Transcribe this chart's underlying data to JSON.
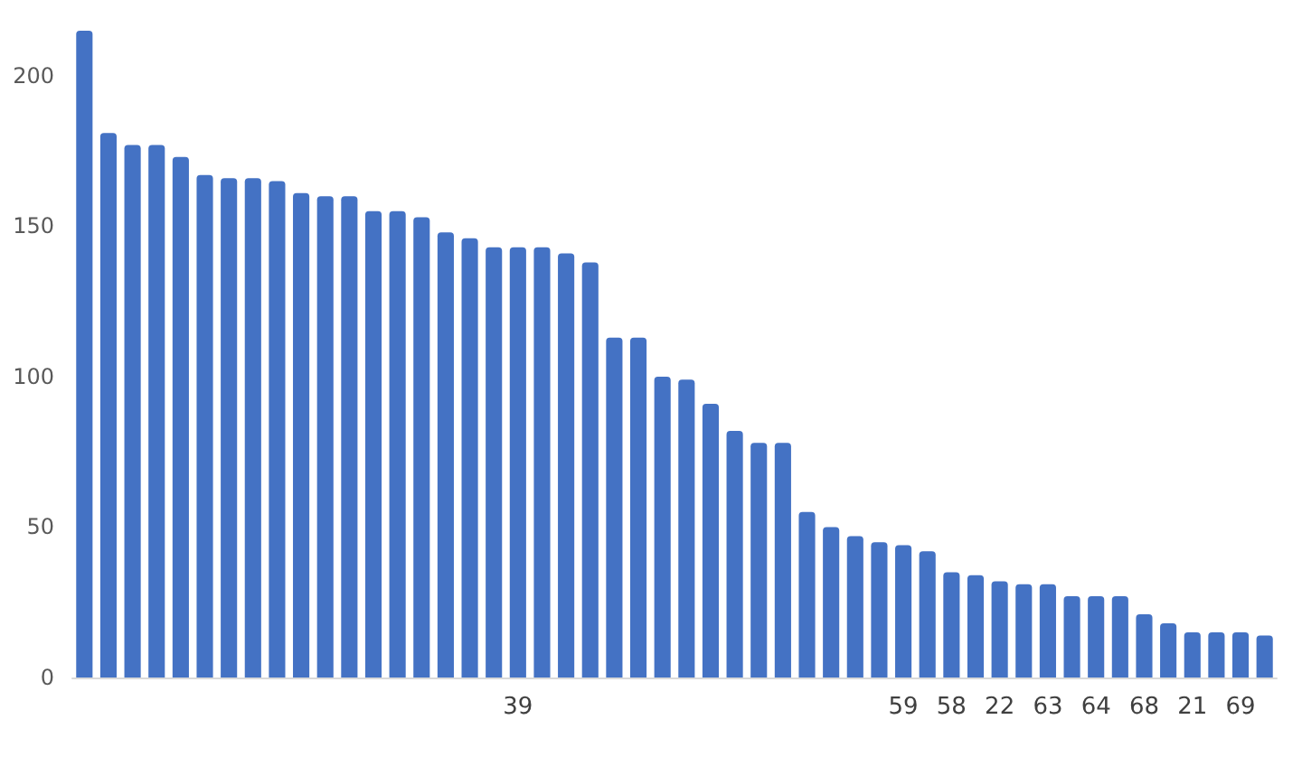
{
  "chart_data": {
    "type": "bar",
    "categories": [
      null,
      null,
      null,
      null,
      null,
      null,
      null,
      null,
      null,
      null,
      null,
      null,
      null,
      null,
      null,
      null,
      null,
      null,
      "39",
      null,
      null,
      null,
      null,
      null,
      null,
      null,
      null,
      null,
      null,
      null,
      null,
      null,
      null,
      null,
      "59",
      null,
      "58",
      null,
      "22",
      null,
      "63",
      null,
      "64",
      null,
      "68",
      null,
      "21",
      null,
      "69",
      null
    ],
    "values": [
      215,
      181,
      177,
      177,
      173,
      167,
      166,
      166,
      165,
      161,
      160,
      160,
      155,
      155,
      153,
      148,
      146,
      143,
      143,
      143,
      141,
      138,
      113,
      113,
      100,
      99,
      91,
      82,
      78,
      78,
      55,
      50,
      47,
      45,
      44,
      42,
      35,
      34,
      32,
      31,
      31,
      27,
      27,
      27,
      21,
      18,
      15,
      15,
      15,
      14
    ],
    "color": "#4472c4",
    "ylim": [
      0,
      215
    ],
    "yticks": [
      0,
      50,
      100,
      150,
      200
    ]
  }
}
